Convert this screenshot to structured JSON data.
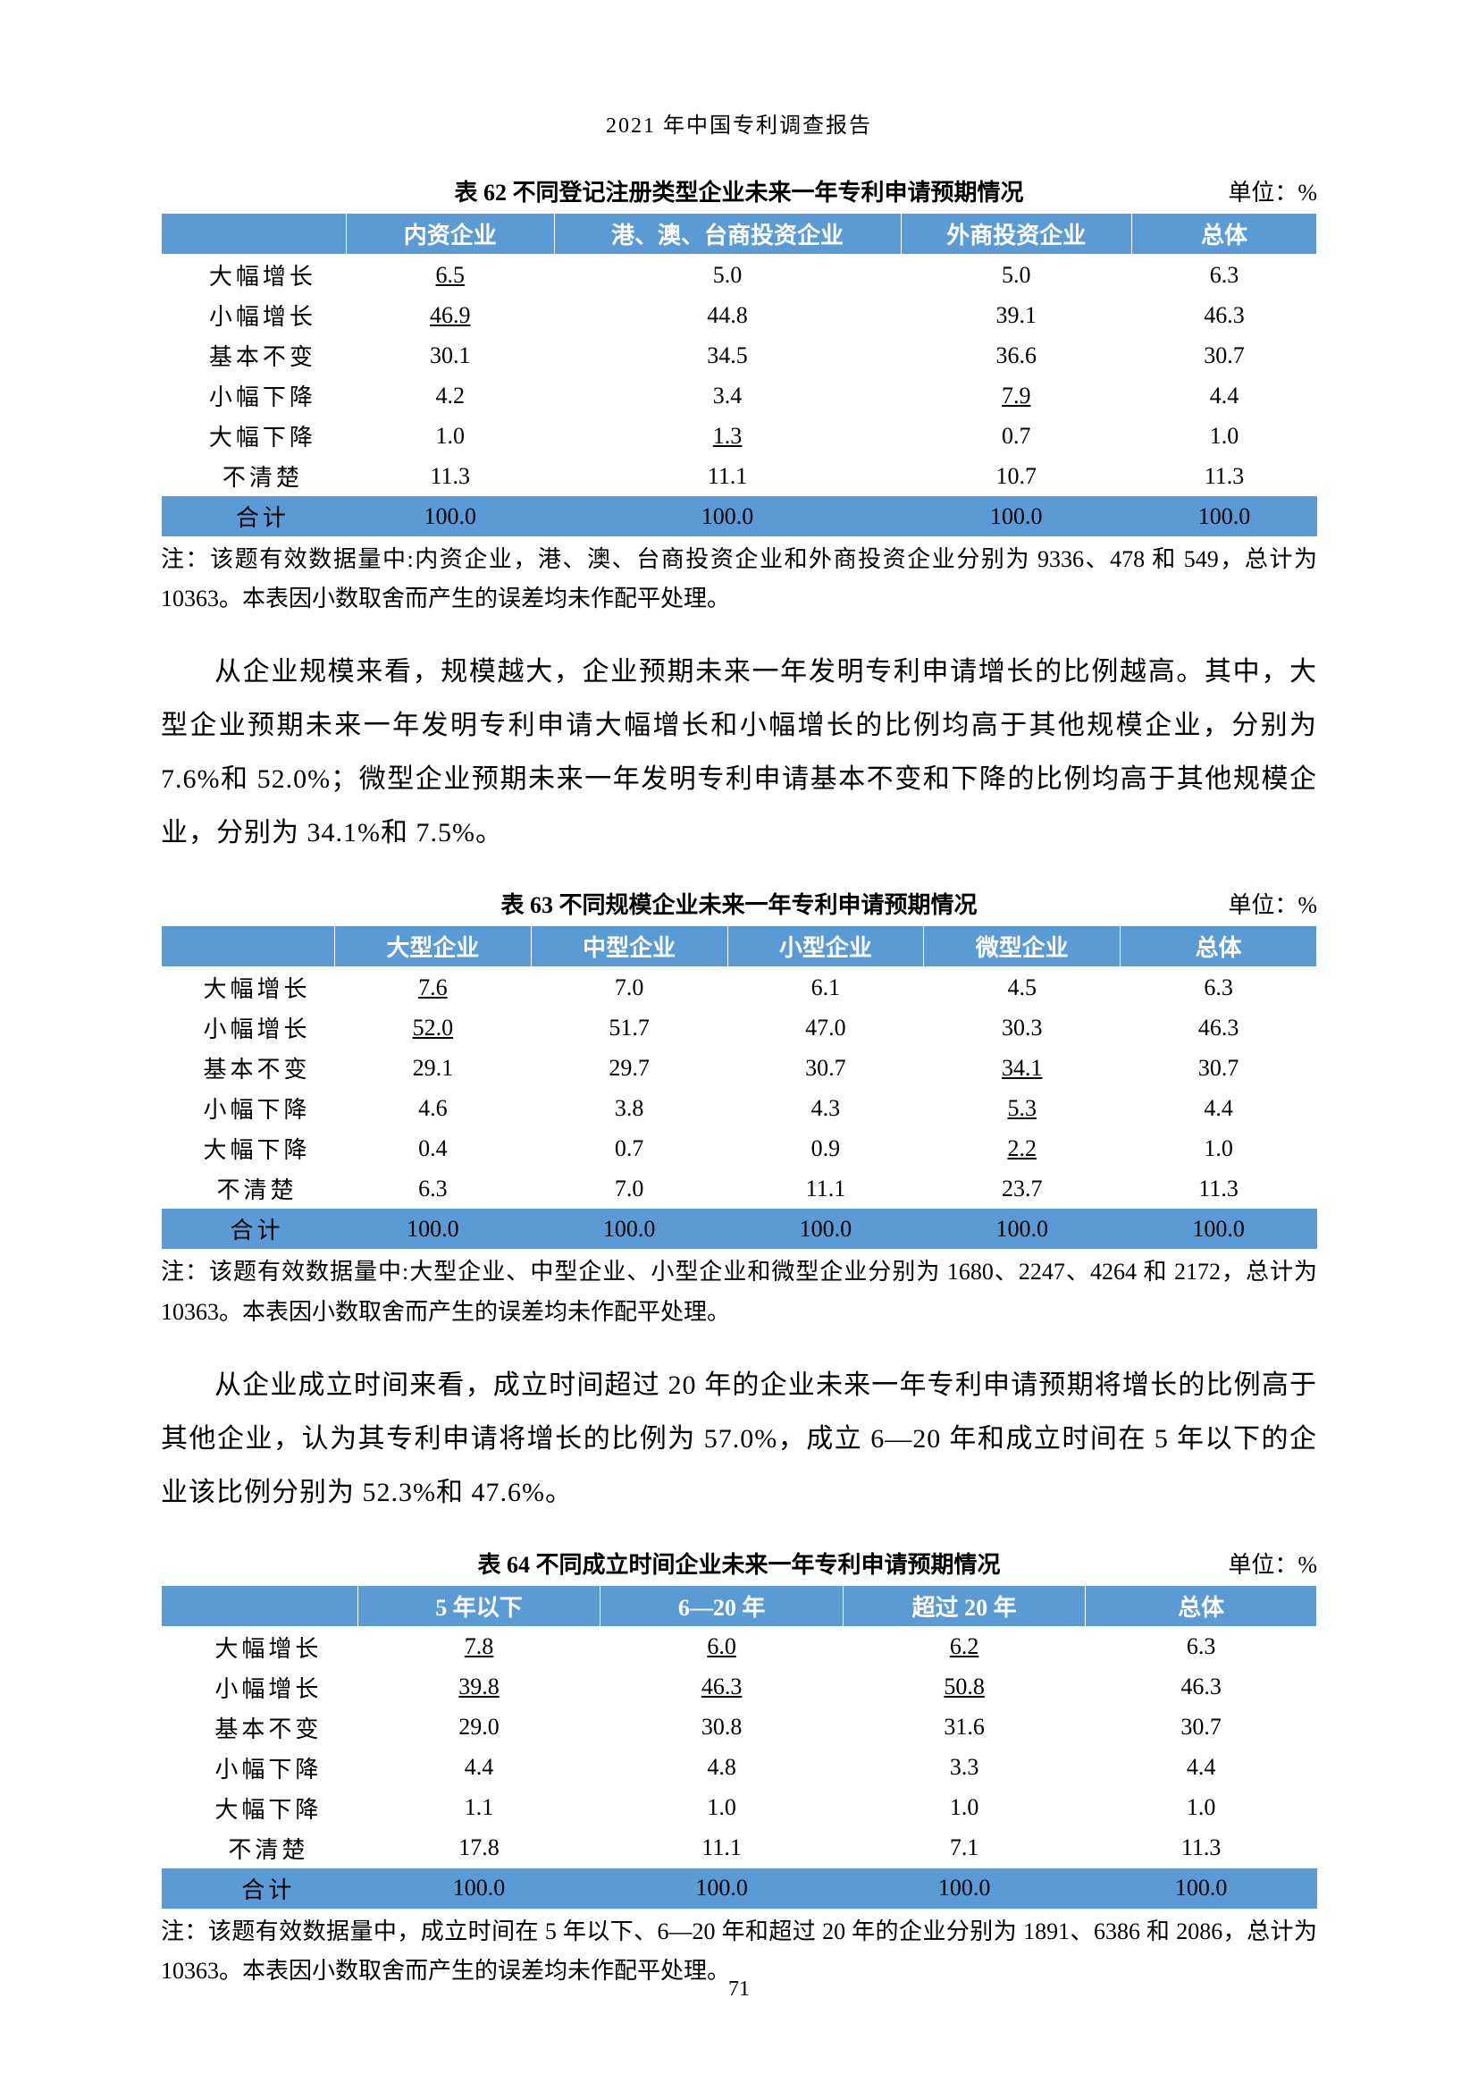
{
  "docHeader": "2021 年中国专利调查报告",
  "pageNumber": "71",
  "table62": {
    "titleLeft": "",
    "title": "表 62  不同登记注册类型企业未来一年专利申请预期情况",
    "unit": "单位：%",
    "headers": [
      "",
      "内资企业",
      "港、澳、台商投资企业",
      "外商投资企业",
      "总体"
    ],
    "rows": [
      {
        "label": "大幅增长",
        "cells": [
          {
            "v": "6.5",
            "u": true
          },
          {
            "v": "5.0"
          },
          {
            "v": "5.0"
          },
          {
            "v": "6.3"
          }
        ]
      },
      {
        "label": "小幅增长",
        "cells": [
          {
            "v": "46.9",
            "u": true
          },
          {
            "v": "44.8"
          },
          {
            "v": "39.1"
          },
          {
            "v": "46.3"
          }
        ]
      },
      {
        "label": "基本不变",
        "cells": [
          {
            "v": "30.1"
          },
          {
            "v": "34.5"
          },
          {
            "v": "36.6"
          },
          {
            "v": "30.7"
          }
        ]
      },
      {
        "label": "小幅下降",
        "cells": [
          {
            "v": "4.2"
          },
          {
            "v": "3.4"
          },
          {
            "v": "7.9",
            "u": true
          },
          {
            "v": "4.4"
          }
        ]
      },
      {
        "label": "大幅下降",
        "cells": [
          {
            "v": "1.0"
          },
          {
            "v": "1.3",
            "u": true
          },
          {
            "v": "0.7"
          },
          {
            "v": "1.0"
          }
        ]
      },
      {
        "label": "不清楚",
        "cells": [
          {
            "v": "11.3"
          },
          {
            "v": "11.1"
          },
          {
            "v": "10.7"
          },
          {
            "v": "11.3"
          }
        ]
      }
    ],
    "total": {
      "label": "合计",
      "cells": [
        "100.0",
        "100.0",
        "100.0",
        "100.0"
      ]
    },
    "note": "注：该题有效数据量中:内资企业，港、澳、台商投资企业和外商投资企业分别为 9336、478 和 549，总计为 10363。本表因小数取舍而产生的误差均未作配平处理。",
    "colWidths": [
      "16%",
      "18%",
      "30%",
      "20%",
      "16%"
    ],
    "headerBg": "#5b9bd5",
    "headerFg": "#ffffff"
  },
  "para1": "从企业规模来看，规模越大，企业预期未来一年发明专利申请增长的比例越高。其中，大型企业预期未来一年发明专利申请大幅增长和小幅增长的比例均高于其他规模企业，分别为 7.6%和 52.0%；微型企业预期未来一年发明专利申请基本不变和下降的比例均高于其他规模企业，分别为 34.1%和 7.5%。",
  "table63": {
    "title": "表 63  不同规模企业未来一年专利申请预期情况",
    "unit": "单位：%",
    "headers": [
      "",
      "大型企业",
      "中型企业",
      "小型企业",
      "微型企业",
      "总体"
    ],
    "rows": [
      {
        "label": "大幅增长",
        "cells": [
          {
            "v": "7.6",
            "u": true
          },
          {
            "v": "7.0"
          },
          {
            "v": "6.1"
          },
          {
            "v": "4.5"
          },
          {
            "v": "6.3"
          }
        ]
      },
      {
        "label": "小幅增长",
        "cells": [
          {
            "v": "52.0",
            "u": true
          },
          {
            "v": "51.7"
          },
          {
            "v": "47.0"
          },
          {
            "v": "30.3"
          },
          {
            "v": "46.3"
          }
        ]
      },
      {
        "label": "基本不变",
        "cells": [
          {
            "v": "29.1"
          },
          {
            "v": "29.7"
          },
          {
            "v": "30.7"
          },
          {
            "v": "34.1",
            "u": true
          },
          {
            "v": "30.7"
          }
        ]
      },
      {
        "label": "小幅下降",
        "cells": [
          {
            "v": "4.6"
          },
          {
            "v": "3.8"
          },
          {
            "v": "4.3"
          },
          {
            "v": "5.3",
            "u": true
          },
          {
            "v": "4.4"
          }
        ]
      },
      {
        "label": "大幅下降",
        "cells": [
          {
            "v": "0.4"
          },
          {
            "v": "0.7"
          },
          {
            "v": "0.9"
          },
          {
            "v": "2.2",
            "u": true
          },
          {
            "v": "1.0"
          }
        ]
      },
      {
        "label": "不清楚",
        "cells": [
          {
            "v": "6.3"
          },
          {
            "v": "7.0"
          },
          {
            "v": "11.1"
          },
          {
            "v": "23.7"
          },
          {
            "v": "11.3"
          }
        ]
      }
    ],
    "total": {
      "label": "合计",
      "cells": [
        "100.0",
        "100.0",
        "100.0",
        "100.0",
        "100.0"
      ]
    },
    "note": "注：该题有效数据量中:大型企业、中型企业、小型企业和微型企业分别为 1680、2247、4264 和 2172，总计为 10363。本表因小数取舍而产生的误差均未作配平处理。",
    "colWidths": [
      "15%",
      "17%",
      "17%",
      "17%",
      "17%",
      "17%"
    ]
  },
  "para2": "从企业成立时间来看，成立时间超过 20 年的企业未来一年专利申请预期将增长的比例高于其他企业，认为其专利申请将增长的比例为 57.0%，成立 6—20 年和成立时间在 5 年以下的企业该比例分别为 52.3%和 47.6%。",
  "table64": {
    "title": "表 64  不同成立时间企业未来一年专利申请预期情况",
    "unit": "单位：%",
    "headers": [
      "",
      "5 年以下",
      "6—20 年",
      "超过 20 年",
      "总体"
    ],
    "rows": [
      {
        "label": "大幅增长",
        "cells": [
          {
            "v": "7.8",
            "u": true
          },
          {
            "v": "6.0",
            "u": true
          },
          {
            "v": "6.2",
            "u": true
          },
          {
            "v": "6.3"
          }
        ]
      },
      {
        "label": "小幅增长",
        "cells": [
          {
            "v": "39.8",
            "u": true
          },
          {
            "v": "46.3",
            "u": true
          },
          {
            "v": "50.8",
            "u": true
          },
          {
            "v": "46.3"
          }
        ]
      },
      {
        "label": "基本不变",
        "cells": [
          {
            "v": "29.0"
          },
          {
            "v": "30.8"
          },
          {
            "v": "31.6"
          },
          {
            "v": "30.7"
          }
        ]
      },
      {
        "label": "小幅下降",
        "cells": [
          {
            "v": "4.4"
          },
          {
            "v": "4.8"
          },
          {
            "v": "3.3"
          },
          {
            "v": "4.4"
          }
        ]
      },
      {
        "label": "大幅下降",
        "cells": [
          {
            "v": "1.1"
          },
          {
            "v": "1.0"
          },
          {
            "v": "1.0"
          },
          {
            "v": "1.0"
          }
        ]
      },
      {
        "label": "不清楚",
        "cells": [
          {
            "v": "17.8"
          },
          {
            "v": "11.1"
          },
          {
            "v": "7.1"
          },
          {
            "v": "11.3"
          }
        ]
      }
    ],
    "total": {
      "label": "合计",
      "cells": [
        "100.0",
        "100.0",
        "100.0",
        "100.0"
      ]
    },
    "note": "注：该题有效数据量中，成立时间在 5 年以下、6—20 年和超过 20 年的企业分别为 1891、6386 和 2086，总计为 10363。本表因小数取舍而产生的误差均未作配平处理。",
    "colWidths": [
      "17%",
      "21%",
      "21%",
      "21%",
      "20%"
    ]
  }
}
